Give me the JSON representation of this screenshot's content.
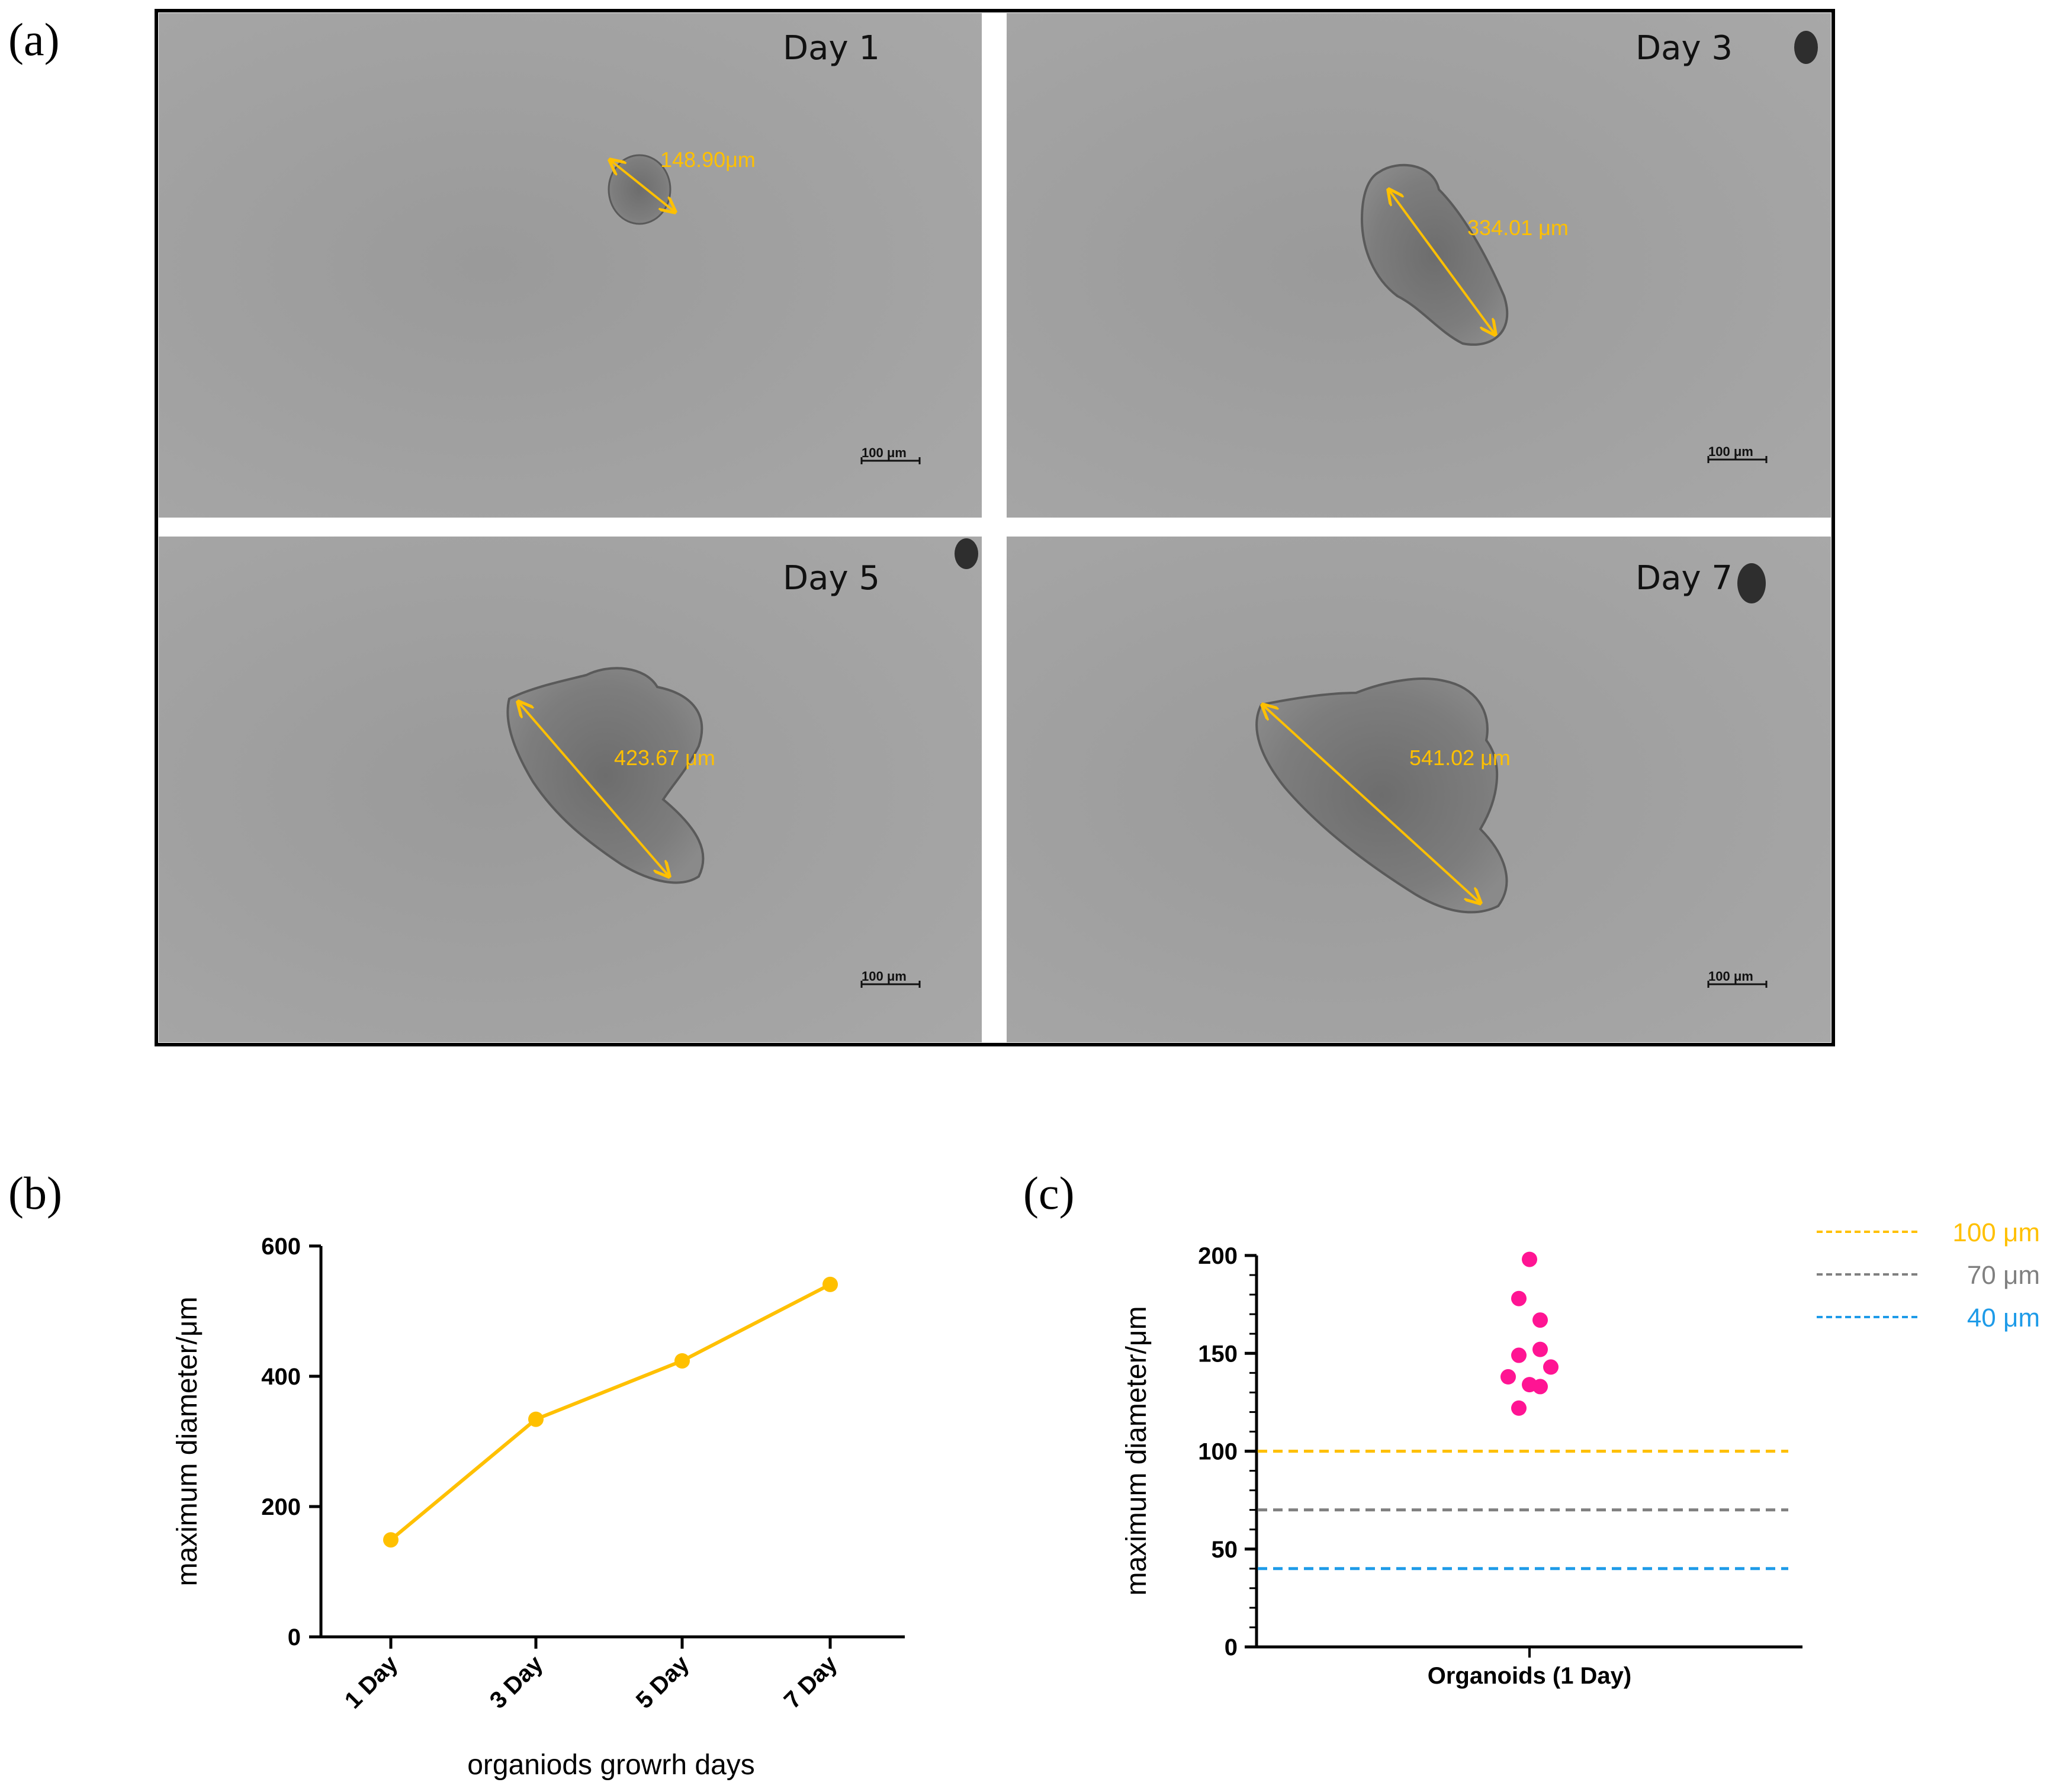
{
  "panels": {
    "a": "(a)",
    "b": "(b)",
    "c": "(c)"
  },
  "micrographs": [
    {
      "day": "Day 1",
      "measurement": "148.90μm",
      "scale_bar": "100 μm"
    },
    {
      "day": "Day 3",
      "measurement": "334.01 μm",
      "scale_bar": "100 μm"
    },
    {
      "day": "Day 5",
      "measurement": "423.67 μm",
      "scale_bar": "100 μm"
    },
    {
      "day": "Day 7",
      "measurement": "541.02 μm",
      "scale_bar": "100 μm"
    }
  ],
  "colors": {
    "line": "#ffc000",
    "points_c": "#ff1493",
    "dash_100": "#ffc000",
    "dash_70": "#808080",
    "dash_40": "#1e9be8",
    "micro_bg": "#9c9c9c"
  },
  "chart_data": [
    {
      "type": "line",
      "categories": [
        "1 Day",
        "3 Day",
        "5 Day",
        "7 Day"
      ],
      "values": [
        148.9,
        334.01,
        423.67,
        541.02
      ],
      "xlabel": "organiods growrh days",
      "ylabel": "maximum diameter/μm",
      "ylim": [
        0,
        600
      ],
      "yticks": [
        0,
        200,
        400,
        600
      ]
    },
    {
      "type": "scatter",
      "category": "Organoids (1 Day)",
      "values": [
        198,
        178,
        167,
        152,
        149,
        143,
        138,
        134,
        133,
        122
      ],
      "ylabel": "maximum diameter/μm",
      "ylim": [
        0,
        200
      ],
      "yticks": [
        0,
        50,
        100,
        150,
        200
      ],
      "reference_lines": [
        {
          "value": 100,
          "label": "100 μm",
          "color": "#ffc000"
        },
        {
          "value": 70,
          "label": "70 μm",
          "color": "#808080"
        },
        {
          "value": 40,
          "label": "40 μm",
          "color": "#1e9be8"
        }
      ],
      "legend": "top-right"
    }
  ]
}
